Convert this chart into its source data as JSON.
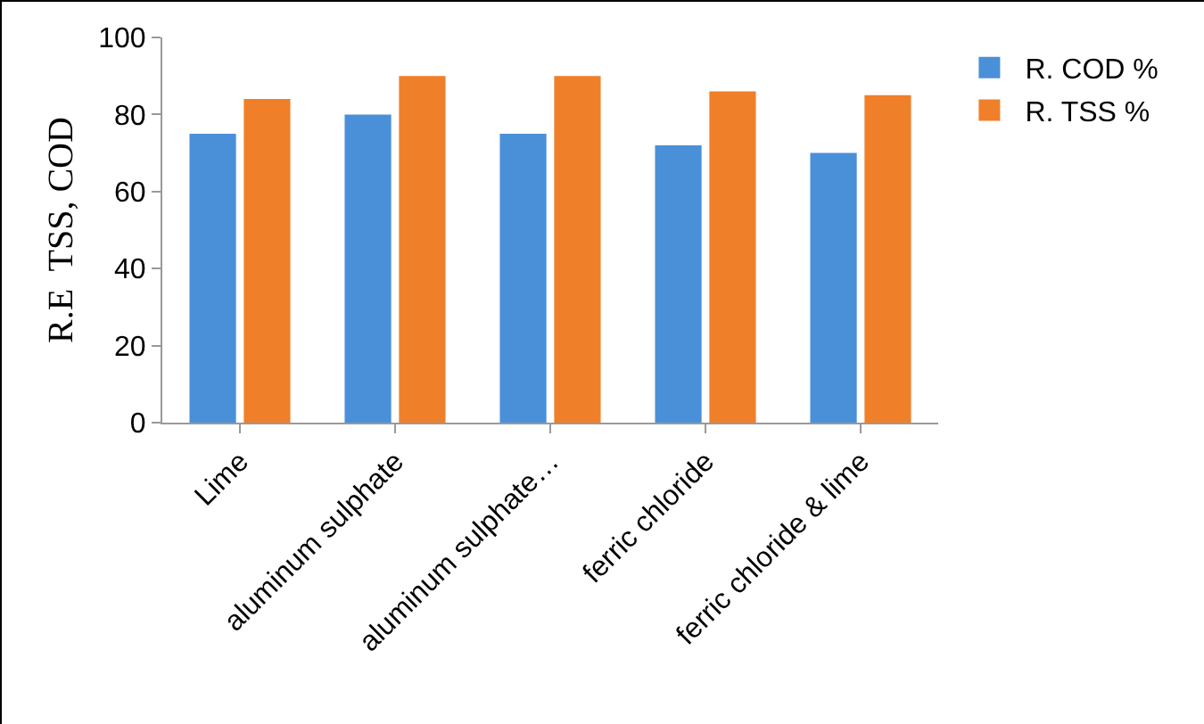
{
  "chart_data": {
    "type": "bar",
    "ylabel": "R.E  TSS, COD",
    "categories": [
      "Lime",
      "aluminum sulphate",
      "aluminum sulphate…",
      "ferric chloride",
      "ferric chloride & lime"
    ],
    "series": [
      {
        "name": "R. COD %",
        "color": "#4a90d9",
        "values": [
          75,
          80,
          75,
          72,
          70
        ]
      },
      {
        "name": "R. TSS %",
        "color": "#f07f2a",
        "values": [
          84,
          90,
          90,
          86,
          85
        ]
      }
    ],
    "ylim": [
      0,
      100
    ],
    "yticks": [
      0,
      20,
      40,
      60,
      80,
      100
    ],
    "grid": false,
    "legend": "top right"
  }
}
